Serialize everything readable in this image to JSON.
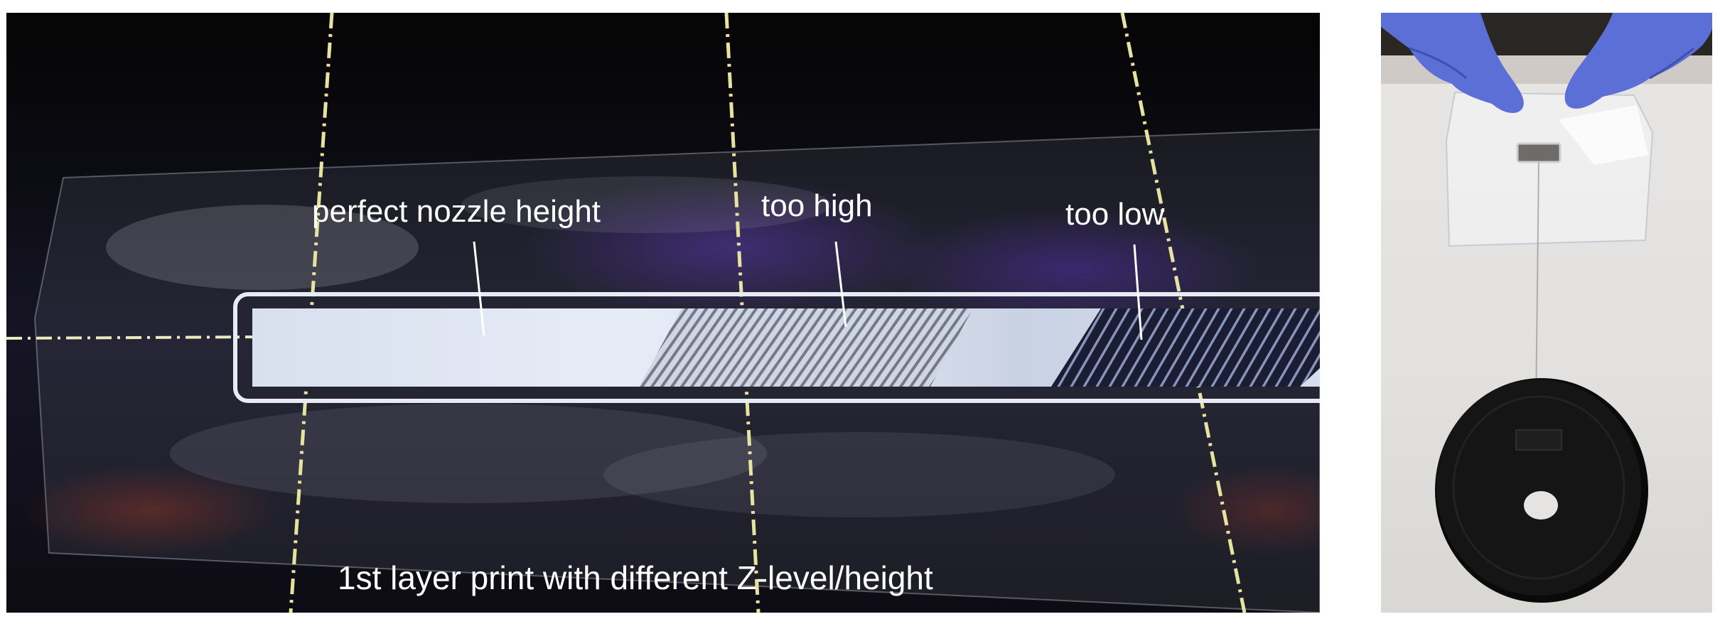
{
  "figure": {
    "left_photo": {
      "labels": {
        "perfect": "perfect nozzle height",
        "too_high": "too high",
        "too_low": "too low"
      },
      "caption": "1st layer print with different Z-level/height"
    },
    "right_photo": {}
  },
  "colors": {
    "label_text": "#ffffff",
    "print_strip": "#dfe6f4",
    "gloves": "#5b6fd6",
    "weight": "#111111",
    "background_right": "#e6e4e2"
  }
}
